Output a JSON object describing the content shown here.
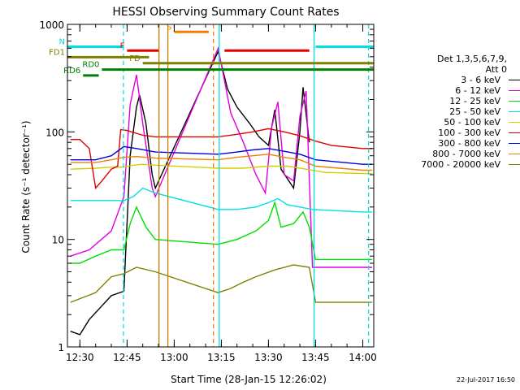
{
  "chart_data": {
    "type": "line",
    "title": "HESSI Observing Summary Count Rates",
    "ylabel": "Count Rate (s⁻¹ detector⁻¹)",
    "xlabel": "Start Time (28-Jan-15 12:26:02)",
    "y_scale": "log",
    "ylim": [
      1,
      1000
    ],
    "xlim": [
      "12:26:02",
      "14:03:30"
    ],
    "x_ticks": [
      "12:30",
      "12:45",
      "13:00",
      "13:15",
      "13:30",
      "13:45",
      "14:00"
    ],
    "y_ticks": [
      "1",
      "10",
      "100",
      "1000"
    ],
    "legend_title": "Det 1,3,5,6,7,9,",
    "legend_subtitle": "Att 0",
    "legend_position": "right",
    "series": [
      {
        "name": "3 - 6 keV",
        "color": "#000000",
        "points": [
          [
            "12:27",
            1.4
          ],
          [
            "12:30",
            1.3
          ],
          [
            "12:33",
            1.8
          ],
          [
            "12:40",
            3.0
          ],
          [
            "12:44",
            3.3
          ],
          [
            "12:46",
            60
          ],
          [
            "12:48",
            170
          ],
          [
            "12:49",
            220
          ],
          [
            "12:51",
            120
          ],
          [
            "12:53",
            40
          ],
          [
            "12:54",
            30
          ],
          [
            "13:14",
            560
          ],
          [
            "13:17",
            250
          ],
          [
            "13:20",
            170
          ],
          [
            "13:24",
            120
          ],
          [
            "13:27",
            90
          ],
          [
            "13:30",
            75
          ],
          [
            "13:32",
            160
          ],
          [
            "13:34",
            45
          ],
          [
            "13:38",
            30
          ],
          [
            "13:40",
            100
          ],
          [
            "13:41",
            260
          ],
          [
            "13:43",
            80
          ]
        ]
      },
      {
        "name": "6 - 12 keV",
        "color": "#e000e0",
        "points": [
          [
            "12:27",
            7
          ],
          [
            "12:33",
            8
          ],
          [
            "12:40",
            12
          ],
          [
            "12:44",
            25
          ],
          [
            "12:46",
            180
          ],
          [
            "12:48",
            340
          ],
          [
            "12:50",
            120
          ],
          [
            "12:53",
            30
          ],
          [
            "12:54",
            25
          ],
          [
            "13:14",
            600
          ],
          [
            "13:18",
            150
          ],
          [
            "13:22",
            80
          ],
          [
            "13:26",
            40
          ],
          [
            "13:29",
            27
          ],
          [
            "13:31",
            110
          ],
          [
            "13:33",
            190
          ],
          [
            "13:35",
            40
          ],
          [
            "13:38",
            35
          ],
          [
            "13:40",
            140
          ],
          [
            "13:42",
            240
          ],
          [
            "13:44",
            5.5
          ],
          [
            "14:00",
            5.5
          ],
          [
            "14:03",
            5.5
          ]
        ]
      },
      {
        "name": "12 - 25 keV",
        "color": "#00e000",
        "points": [
          [
            "12:27",
            6
          ],
          [
            "12:30",
            6
          ],
          [
            "12:35",
            7
          ],
          [
            "12:40",
            8
          ],
          [
            "12:44",
            8
          ],
          [
            "12:46",
            14
          ],
          [
            "12:48",
            20
          ],
          [
            "12:51",
            13
          ],
          [
            "12:54",
            10
          ],
          [
            "13:14",
            9
          ],
          [
            "13:20",
            10
          ],
          [
            "13:26",
            12
          ],
          [
            "13:30",
            15
          ],
          [
            "13:32",
            22
          ],
          [
            "13:34",
            13
          ],
          [
            "13:38",
            14
          ],
          [
            "13:41",
            18
          ],
          [
            "13:43",
            13
          ],
          [
            "13:45",
            6.5
          ],
          [
            "14:00",
            6.5
          ],
          [
            "14:03",
            6.5
          ]
        ]
      },
      {
        "name": "25 - 50 keV",
        "color": "#00e0e0",
        "points": [
          [
            "12:27",
            23
          ],
          [
            "12:30",
            23
          ],
          [
            "12:40",
            23
          ],
          [
            "12:44",
            23
          ],
          [
            "12:47",
            25
          ],
          [
            "12:50",
            30
          ],
          [
            "12:54",
            27
          ],
          [
            "13:14",
            19
          ],
          [
            "13:20",
            19
          ],
          [
            "13:26",
            20
          ],
          [
            "13:30",
            22
          ],
          [
            "13:33",
            24
          ],
          [
            "13:36",
            21
          ],
          [
            "13:40",
            20
          ],
          [
            "13:44",
            19
          ],
          [
            "14:00",
            18
          ],
          [
            "14:03",
            18
          ]
        ]
      },
      {
        "name": "50 - 100 keV",
        "color": "#d0d000",
        "points": [
          [
            "12:27",
            45
          ],
          [
            "12:35",
            46
          ],
          [
            "12:40",
            47
          ],
          [
            "12:44",
            47
          ],
          [
            "12:47",
            49
          ],
          [
            "12:50",
            50
          ],
          [
            "12:54",
            49
          ],
          [
            "13:14",
            46
          ],
          [
            "13:22",
            46
          ],
          [
            "13:30",
            48
          ],
          [
            "13:36",
            48
          ],
          [
            "13:42",
            45
          ],
          [
            "13:48",
            42
          ],
          [
            "14:00",
            41
          ],
          [
            "14:03",
            41
          ]
        ]
      },
      {
        "name": "100 - 300 keV",
        "color": "#e00000",
        "points": [
          [
            "12:27",
            85
          ],
          [
            "12:30",
            85
          ],
          [
            "12:33",
            70
          ],
          [
            "12:35",
            30
          ],
          [
            "12:37",
            35
          ],
          [
            "12:40",
            45
          ],
          [
            "12:42",
            48
          ],
          [
            "12:43",
            105
          ],
          [
            "12:45",
            103
          ],
          [
            "12:50",
            93
          ],
          [
            "12:54",
            90
          ],
          [
            "13:14",
            90
          ],
          [
            "13:20",
            95
          ],
          [
            "13:25",
            100
          ],
          [
            "13:30",
            107
          ],
          [
            "13:35",
            100
          ],
          [
            "13:40",
            92
          ],
          [
            "13:45",
            82
          ],
          [
            "13:50",
            75
          ],
          [
            "14:00",
            70
          ],
          [
            "14:03",
            70
          ]
        ]
      },
      {
        "name": "300 - 800 keV",
        "color": "#0000e0",
        "points": [
          [
            "12:27",
            55
          ],
          [
            "12:35",
            55
          ],
          [
            "12:40",
            60
          ],
          [
            "12:44",
            73
          ],
          [
            "12:48",
            70
          ],
          [
            "12:54",
            65
          ],
          [
            "13:14",
            62
          ],
          [
            "13:20",
            65
          ],
          [
            "13:25",
            68
          ],
          [
            "13:30",
            70
          ],
          [
            "13:35",
            66
          ],
          [
            "13:40",
            62
          ],
          [
            "13:45",
            55
          ],
          [
            "14:00",
            50
          ],
          [
            "14:03",
            50
          ]
        ]
      },
      {
        "name": "800 - 7000 keV",
        "color": "#f08000",
        "points": [
          [
            "12:27",
            52
          ],
          [
            "12:35",
            52
          ],
          [
            "12:40",
            55
          ],
          [
            "12:44",
            58
          ],
          [
            "12:48",
            59
          ],
          [
            "12:54",
            57
          ],
          [
            "13:14",
            55
          ],
          [
            "13:20",
            58
          ],
          [
            "13:25",
            60
          ],
          [
            "13:30",
            62
          ],
          [
            "13:35",
            58
          ],
          [
            "13:40",
            55
          ],
          [
            "13:45",
            48
          ],
          [
            "14:00",
            44
          ],
          [
            "14:03",
            44
          ]
        ]
      },
      {
        "name": "7000 - 20000 keV",
        "color": "#808000",
        "points": [
          [
            "12:27",
            2.6
          ],
          [
            "12:35",
            3.2
          ],
          [
            "12:40",
            4.5
          ],
          [
            "12:44",
            4.8
          ],
          [
            "12:48",
            5.5
          ],
          [
            "12:54",
            5.0
          ],
          [
            "13:14",
            3.2
          ],
          [
            "13:18",
            3.5
          ],
          [
            "13:22",
            4.0
          ],
          [
            "13:26",
            4.5
          ],
          [
            "13:32",
            5.2
          ],
          [
            "13:38",
            5.8
          ],
          [
            "13:43",
            5.5
          ],
          [
            "13:45",
            2.6
          ],
          [
            "14:00",
            2.6
          ],
          [
            "14:03",
            2.6
          ]
        ]
      }
    ],
    "intervals": [
      {
        "label": "N",
        "color": "#00e0e0",
        "y": 620,
        "segments": [
          [
            "12:26:02",
            "12:44"
          ],
          [
            "13:45",
            "14:03:30"
          ]
        ]
      },
      {
        "label": "F",
        "color": "#e00000",
        "y": 570,
        "segments": [
          [
            "12:45",
            "12:55"
          ],
          [
            "13:16",
            "13:43"
          ]
        ]
      },
      {
        "label": "S",
        "color": "#f08000",
        "y": 850,
        "segments": [
          [
            "13:00",
            "13:11"
          ]
        ]
      },
      {
        "label": "FD1",
        "color": "#808000",
        "y": 495,
        "segments": [
          [
            "12:26:02",
            "12:52"
          ]
        ]
      },
      {
        "label": "FD",
        "color": "#808000",
        "y": 435,
        "segments": [
          [
            "12:50",
            "14:03:30"
          ]
        ]
      },
      {
        "label": "RD0",
        "color": "#008000",
        "y": 380,
        "segments": [
          [
            "12:37",
            "14:03:30"
          ]
        ]
      },
      {
        "label": "RD6",
        "color": "#008000",
        "y": 335,
        "segments": [
          [
            "12:31",
            "12:36"
          ]
        ]
      }
    ],
    "markers": [
      {
        "time": "12:43:50",
        "style": "dashed",
        "color": "#00e0e0"
      },
      {
        "time": "12:55:10",
        "style": "solid",
        "color": "#c08000"
      },
      {
        "time": "12:58:00",
        "style": "solid",
        "color": "#c08000"
      },
      {
        "time": "13:12:30",
        "style": "dashed",
        "color": "#f08000"
      },
      {
        "time": "13:14:20",
        "style": "solid",
        "color": "#00e0e0"
      },
      {
        "time": "13:44:30",
        "style": "solid",
        "color": "#00e0e0"
      },
      {
        "time": "14:01:50",
        "style": "dashed",
        "color": "#00e0e0"
      }
    ]
  },
  "footer": {
    "timestamp": "22-Jul-2017 16:50"
  }
}
